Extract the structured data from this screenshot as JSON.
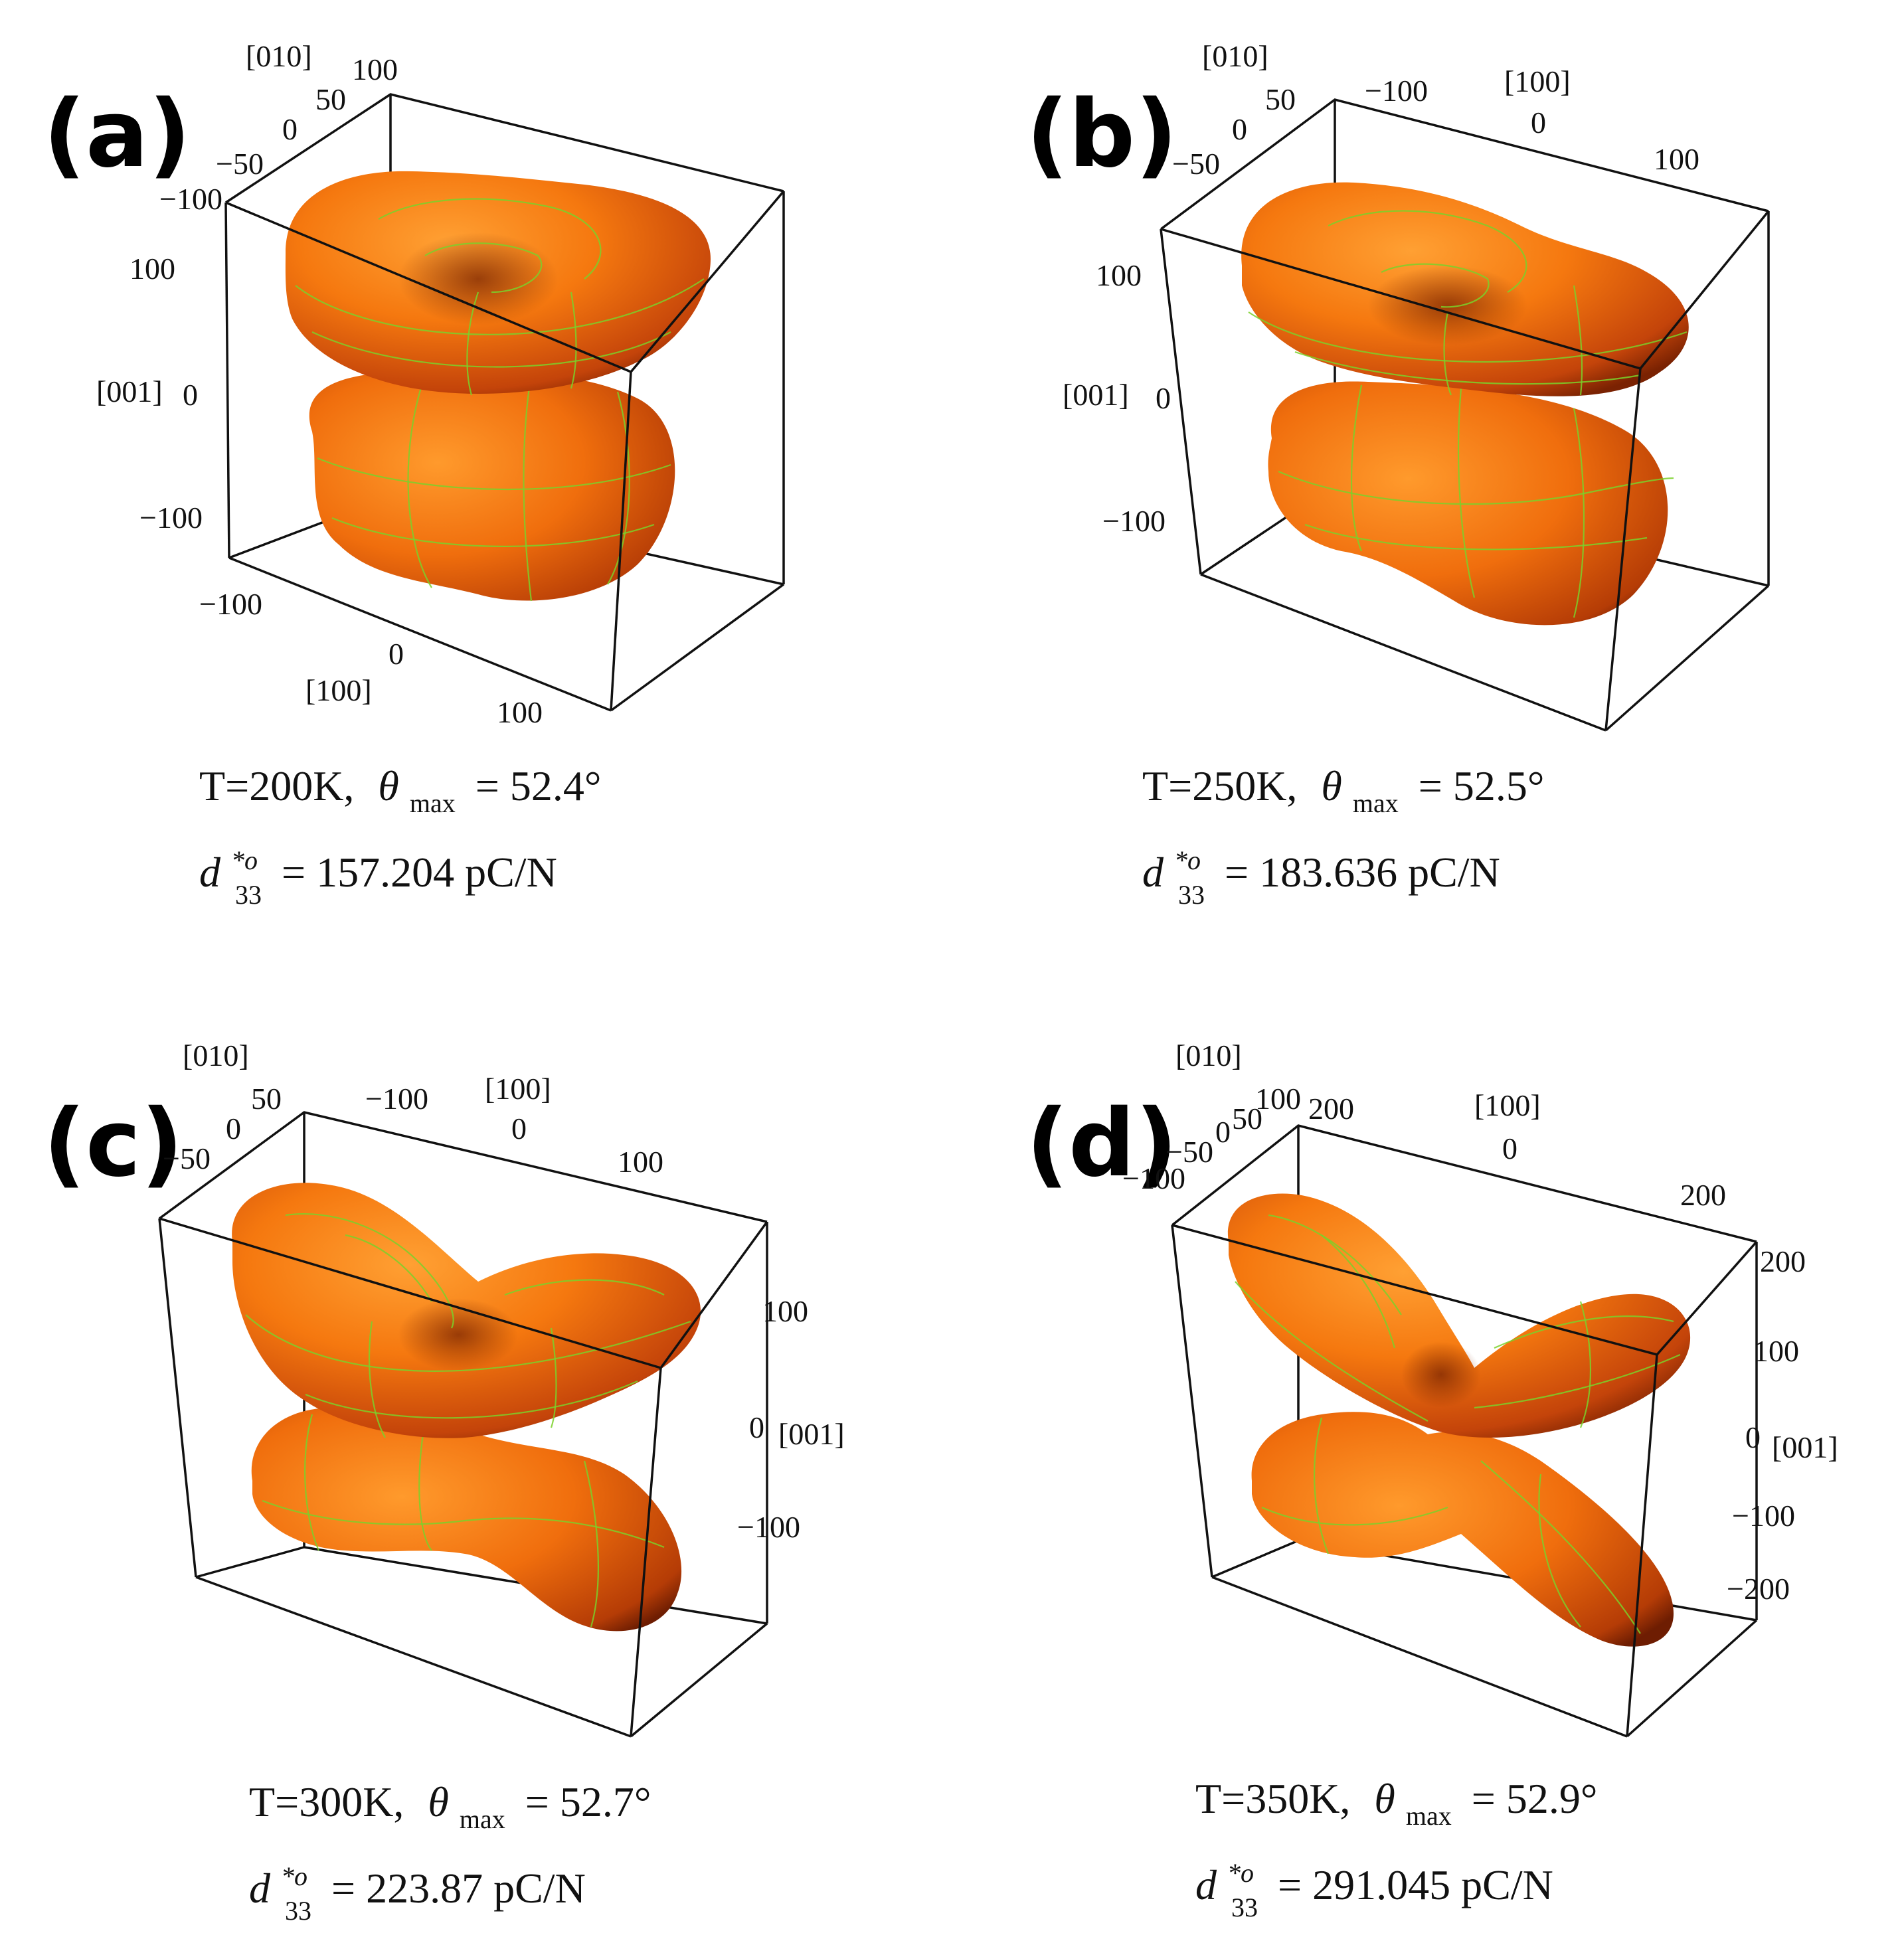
{
  "colors": {
    "surface_light": "#ff8c1a",
    "surface_mid": "#f06a0c",
    "surface_dark": "#8a2a02",
    "mesh": "#7ad12a",
    "box": "#111111"
  },
  "chart_data": [
    {
      "type": "3d-surface",
      "panel": "(a)",
      "shape": "toroidal-two-lobe",
      "axes": {
        "x": {
          "label": "[100]",
          "ticks": [
            "−100",
            "0",
            "100"
          ],
          "range": [
            -100,
            100
          ]
        },
        "y": {
          "label": "[010]",
          "ticks": [
            "−100",
            "−50",
            "0",
            "50",
            "100"
          ],
          "range": [
            -100,
            100
          ]
        },
        "z": {
          "label": "[001]",
          "ticks": [
            "−100",
            "0",
            "100"
          ],
          "range": [
            -100,
            100
          ]
        }
      },
      "T_label": "T=200K,",
      "T_K": 200,
      "theta_symbol": "θ",
      "theta_sub": "max",
      "theta_text": "= 52.4°",
      "theta_max_deg": 52.4,
      "d_symbol": "d",
      "d_sup": "*o",
      "d_sub": "33",
      "d_text": "= 157.204 pC/N",
      "d33_pC_per_N": 157.204
    },
    {
      "type": "3d-surface",
      "panel": "(b)",
      "shape": "two-lobe-elongating",
      "axes": {
        "x": {
          "label": "[100]",
          "ticks": [
            "−100",
            "0",
            "100"
          ],
          "range": [
            -100,
            100
          ]
        },
        "y": {
          "label": "[010]",
          "ticks": [
            "−50",
            "0",
            "50"
          ],
          "range": [
            -50,
            50
          ]
        },
        "z": {
          "label": "[001]",
          "ticks": [
            "−100",
            "0",
            "100"
          ],
          "range": [
            -100,
            100
          ]
        }
      },
      "T_label": "T=250K,",
      "T_K": 250,
      "theta_symbol": "θ",
      "theta_sub": "max",
      "theta_text": "= 52.5°",
      "theta_max_deg": 52.5,
      "d_symbol": "d",
      "d_sup": "*o",
      "d_sub": "33",
      "d_text": "= 183.636 pC/N",
      "d33_pC_per_N": 183.636
    },
    {
      "type": "3d-surface",
      "panel": "(c)",
      "shape": "four-lobe-forming",
      "axes": {
        "x": {
          "label": "[100]",
          "ticks": [
            "−100",
            "0",
            "100"
          ],
          "range": [
            -100,
            100
          ]
        },
        "y": {
          "label": "[010]",
          "ticks": [
            "−50",
            "0",
            "50"
          ],
          "range": [
            -50,
            50
          ]
        },
        "z": {
          "label": "[001]",
          "ticks": [
            "−100",
            "0",
            "100"
          ],
          "range": [
            -100,
            100
          ]
        }
      },
      "T_label": "T=300K,",
      "T_K": 300,
      "theta_symbol": "θ",
      "theta_sub": "max",
      "theta_text": "= 52.7°",
      "theta_max_deg": 52.7,
      "d_symbol": "d",
      "d_sup": "*o",
      "d_sub": "33",
      "d_text": "= 223.87 pC/N",
      "d33_pC_per_N": 223.87
    },
    {
      "type": "3d-surface",
      "panel": "(d)",
      "shape": "four-lobe",
      "axes": {
        "x": {
          "label": "[100]",
          "ticks": [
            "0",
            "200"
          ],
          "range": [
            -200,
            200
          ]
        },
        "y": {
          "label": "[010]",
          "ticks": [
            "−100",
            "−50",
            "0",
            "50",
            "100",
            "200"
          ],
          "range": [
            -100,
            200
          ]
        },
        "z": {
          "label": "[001]",
          "ticks": [
            "−200",
            "−100",
            "0",
            "100",
            "200"
          ],
          "range": [
            -200,
            200
          ]
        }
      },
      "T_label": "T=350K,",
      "T_K": 350,
      "theta_symbol": "θ",
      "theta_sub": "max",
      "theta_text": "= 52.9°",
      "theta_max_deg": 52.9,
      "d_symbol": "d",
      "d_sup": "*o",
      "d_sub": "33",
      "d_text": "= 291.045 pC/N",
      "d33_pC_per_N": 291.045
    }
  ]
}
